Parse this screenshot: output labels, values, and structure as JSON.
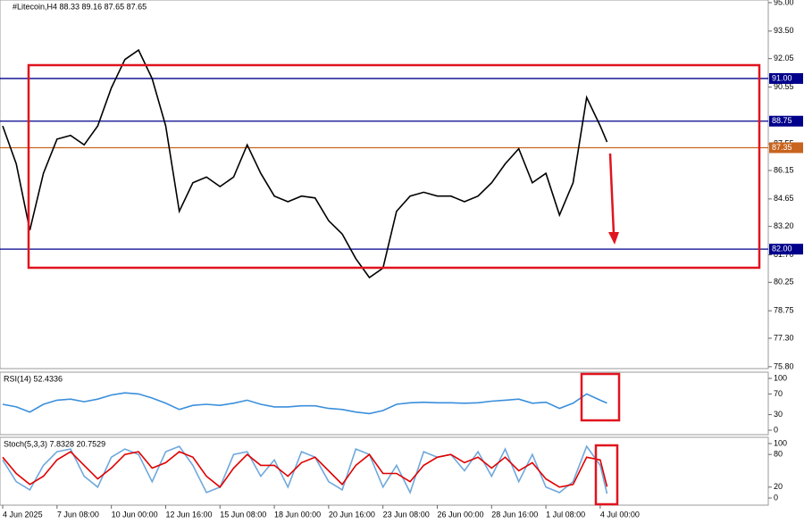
{
  "chart_data": [
    {
      "type": "line",
      "title": "#Litecoin,H4  88.33 89.16 87.65 87.65",
      "x": [
        0,
        4,
        8,
        12,
        16,
        20,
        24,
        28,
        32,
        36,
        40,
        44,
        48,
        52,
        56,
        60,
        64,
        68,
        72,
        76,
        80,
        84,
        88,
        92,
        96,
        100,
        104,
        108,
        112,
        116,
        120,
        124,
        128,
        132,
        136,
        140,
        144,
        148,
        152,
        156,
        160,
        164,
        168,
        172,
        176,
        178
      ],
      "xlim": [
        -0.8,
        225.5
      ],
      "xticks": [
        {
          "value": 0,
          "label": "4 Jun 2025"
        },
        {
          "value": 16,
          "label": "7 Jun 08:00"
        },
        {
          "value": 32,
          "label": "10 Jun 00:00"
        },
        {
          "value": 48,
          "label": "12 Jun 16:00"
        },
        {
          "value": 64,
          "label": "15 Jun 08:00"
        },
        {
          "value": 80,
          "label": "18 Jun 00:00"
        },
        {
          "value": 96,
          "label": "20 Jun 16:00"
        },
        {
          "value": 112,
          "label": "23 Jun 08:00"
        },
        {
          "value": 128,
          "label": "26 Jun 00:00"
        },
        {
          "value": 144,
          "label": "28 Jun 16:00"
        },
        {
          "value": 160,
          "label": "1 Jul 08:00"
        },
        {
          "value": 176,
          "label": "4 Jul 00:00"
        }
      ],
      "ylim": [
        75.7,
        95.14
      ],
      "yticks": [
        {
          "value": 95,
          "label": "95.00"
        },
        {
          "value": 93.5,
          "label": "93.50"
        },
        {
          "value": 92.05,
          "label": "92.05"
        },
        {
          "value": 90.55,
          "label": "90.55"
        },
        {
          "value": 87.55,
          "label": "87.55"
        },
        {
          "value": 86.15,
          "label": "86.15"
        },
        {
          "value": 84.65,
          "label": "84.65"
        },
        {
          "value": 83.2,
          "label": "83.20"
        },
        {
          "value": 81.7,
          "label": "81.70"
        },
        {
          "value": 80.25,
          "label": "80.25"
        },
        {
          "value": 78.75,
          "label": "78.75"
        },
        {
          "value": 77.3,
          "label": "77.30"
        },
        {
          "value": 75.8,
          "label": "75.80"
        }
      ],
      "series": [
        {
          "color": "#000000",
          "values": [
            88.5,
            86.5,
            83.0,
            86.0,
            87.8,
            88.0,
            87.5,
            88.5,
            90.5,
            92.0,
            92.5,
            91.0,
            88.5,
            84.0,
            85.5,
            85.8,
            85.3,
            85.8,
            87.5,
            86.0,
            84.8,
            84.5,
            84.8,
            84.7,
            83.5,
            82.8,
            81.5,
            80.5,
            81.0,
            84.0,
            84.8,
            85.0,
            84.8,
            84.8,
            84.5,
            84.8,
            85.5,
            86.5,
            87.3,
            85.5,
            86.0,
            83.8,
            85.5,
            90.0,
            88.5,
            87.65
          ]
        }
      ],
      "levels": [
        {
          "value": 91,
          "label": "91.00",
          "color": "#00008b"
        },
        {
          "value": 88.75,
          "label": "88.75",
          "color": "#00008b"
        },
        {
          "value": 87.35,
          "label": "87.35",
          "color": "#c8641e"
        },
        {
          "value": 82,
          "label": "82.00",
          "color": "#00008b"
        }
      ]
    },
    {
      "type": "line",
      "title": "RSI(14) 52.4336",
      "x": [
        0,
        4,
        8,
        12,
        16,
        20,
        24,
        28,
        32,
        36,
        40,
        44,
        48,
        52,
        56,
        60,
        64,
        68,
        72,
        76,
        80,
        84,
        88,
        92,
        96,
        100,
        104,
        108,
        112,
        116,
        120,
        124,
        128,
        132,
        136,
        140,
        144,
        148,
        152,
        156,
        160,
        164,
        168,
        172,
        176,
        178
      ],
      "xlim": [
        -0.8,
        225.5
      ],
      "ylim": [
        0,
        100
      ],
      "yticks": [
        100,
        70,
        30,
        0
      ],
      "series": [
        {
          "color": "#3a8fdc",
          "values": [
            50,
            45,
            35,
            50,
            58,
            60,
            55,
            60,
            68,
            72,
            70,
            62,
            52,
            40,
            48,
            50,
            48,
            52,
            58,
            50,
            45,
            45,
            47,
            47,
            42,
            40,
            35,
            32,
            38,
            50,
            53,
            54,
            53,
            53,
            52,
            53,
            56,
            58,
            60,
            52,
            54,
            42,
            52,
            70,
            58,
            52.4
          ]
        }
      ]
    },
    {
      "type": "line",
      "title": "Stoch(5,3,3) 7.8328 20.7529",
      "x": [
        0,
        4,
        8,
        12,
        16,
        20,
        24,
        28,
        32,
        36,
        40,
        44,
        48,
        52,
        56,
        60,
        64,
        68,
        72,
        76,
        80,
        84,
        88,
        92,
        96,
        100,
        104,
        108,
        112,
        116,
        120,
        124,
        128,
        132,
        136,
        140,
        144,
        148,
        152,
        156,
        160,
        164,
        168,
        172,
        176,
        178
      ],
      "xlim": [
        -0.8,
        225.5
      ],
      "ylim": [
        0,
        100
      ],
      "yticks": [
        100,
        80,
        20,
        0
      ],
      "series": [
        {
          "color": "#6fa8dc",
          "values": [
            70,
            30,
            15,
            60,
            85,
            90,
            40,
            20,
            75,
            90,
            80,
            30,
            85,
            95,
            60,
            10,
            20,
            80,
            85,
            40,
            70,
            20,
            85,
            75,
            30,
            15,
            90,
            80,
            20,
            60,
            10,
            85,
            75,
            80,
            50,
            85,
            40,
            90,
            30,
            80,
            20,
            10,
            30,
            95,
            60,
            7.8
          ]
        },
        {
          "color": "#e00000",
          "values": [
            75,
            45,
            25,
            40,
            70,
            85,
            60,
            35,
            55,
            80,
            85,
            55,
            65,
            85,
            75,
            40,
            20,
            55,
            80,
            60,
            60,
            40,
            65,
            75,
            50,
            25,
            60,
            80,
            45,
            45,
            30,
            60,
            75,
            80,
            65,
            75,
            55,
            75,
            50,
            65,
            35,
            20,
            25,
            75,
            70,
            20.75
          ]
        }
      ]
    }
  ]
}
